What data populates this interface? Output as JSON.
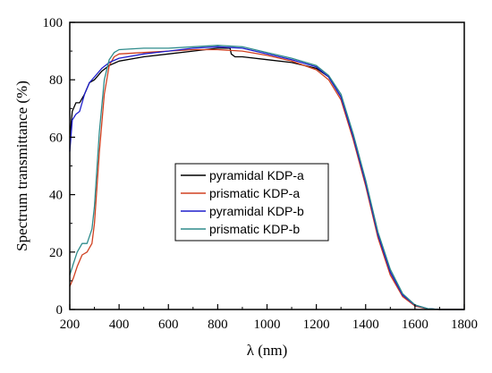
{
  "chart_data": {
    "type": "line",
    "xlabel": "λ (nm)",
    "ylabel": "Spectrum transmittance (%)",
    "xlim": [
      200,
      1800
    ],
    "ylim": [
      0,
      100
    ],
    "xticks": [
      "200",
      "400",
      "600",
      "800",
      "1000",
      "1200",
      "1400",
      "1600",
      "1800"
    ],
    "yticks": [
      "0",
      "20",
      "40",
      "60",
      "80",
      "100"
    ],
    "grid": false,
    "legend_position": "center-left",
    "series": [
      {
        "name": "pyramidal KDP-a",
        "color": "#000000",
        "points": [
          [
            200,
            60
          ],
          [
            210,
            69
          ],
          [
            225,
            72
          ],
          [
            240,
            72
          ],
          [
            260,
            75
          ],
          [
            280,
            79
          ],
          [
            300,
            80
          ],
          [
            330,
            83
          ],
          [
            360,
            85
          ],
          [
            400,
            86.5
          ],
          [
            500,
            88
          ],
          [
            600,
            89
          ],
          [
            700,
            90
          ],
          [
            800,
            91
          ],
          [
            850,
            91
          ],
          [
            855,
            89
          ],
          [
            870,
            88
          ],
          [
            900,
            88
          ],
          [
            1000,
            87
          ],
          [
            1100,
            86
          ],
          [
            1200,
            84
          ],
          [
            1250,
            81
          ],
          [
            1300,
            74
          ],
          [
            1350,
            60
          ],
          [
            1400,
            44
          ],
          [
            1450,
            26
          ],
          [
            1500,
            13
          ],
          [
            1550,
            5
          ],
          [
            1600,
            1.5
          ],
          [
            1650,
            0.3
          ],
          [
            1700,
            0
          ],
          [
            1800,
            0
          ]
        ]
      },
      {
        "name": "prismatic KDP-a",
        "color": "#d04020",
        "points": [
          [
            200,
            8
          ],
          [
            215,
            11
          ],
          [
            230,
            15
          ],
          [
            250,
            19
          ],
          [
            270,
            20
          ],
          [
            290,
            23
          ],
          [
            300,
            30
          ],
          [
            320,
            55
          ],
          [
            340,
            75
          ],
          [
            360,
            85
          ],
          [
            380,
            88
          ],
          [
            400,
            89
          ],
          [
            500,
            89.5
          ],
          [
            600,
            90
          ],
          [
            700,
            90.5
          ],
          [
            800,
            90.5
          ],
          [
            900,
            90
          ],
          [
            1000,
            88.5
          ],
          [
            1100,
            86.5
          ],
          [
            1200,
            83.5
          ],
          [
            1250,
            80
          ],
          [
            1300,
            73
          ],
          [
            1350,
            59
          ],
          [
            1400,
            43
          ],
          [
            1450,
            25
          ],
          [
            1500,
            12
          ],
          [
            1550,
            4.5
          ],
          [
            1600,
            1.2
          ],
          [
            1650,
            0.2
          ],
          [
            1700,
            0
          ],
          [
            1800,
            0
          ]
        ]
      },
      {
        "name": "pyramidal KDP-b",
        "color": "#1e1ecc",
        "points": [
          [
            200,
            55
          ],
          [
            210,
            66
          ],
          [
            225,
            68
          ],
          [
            240,
            69
          ],
          [
            260,
            75
          ],
          [
            280,
            79
          ],
          [
            300,
            81
          ],
          [
            330,
            84
          ],
          [
            360,
            86
          ],
          [
            400,
            87.5
          ],
          [
            500,
            89
          ],
          [
            600,
            90
          ],
          [
            700,
            91
          ],
          [
            800,
            91.5
          ],
          [
            900,
            91
          ],
          [
            1000,
            89
          ],
          [
            1100,
            87
          ],
          [
            1200,
            84.5
          ],
          [
            1250,
            81
          ],
          [
            1300,
            74
          ],
          [
            1350,
            60
          ],
          [
            1400,
            44
          ],
          [
            1450,
            26
          ],
          [
            1500,
            13
          ],
          [
            1550,
            5
          ],
          [
            1600,
            1.5
          ],
          [
            1650,
            0.3
          ],
          [
            1700,
            0
          ],
          [
            1800,
            0
          ]
        ]
      },
      {
        "name": "prismatic KDP-b",
        "color": "#2e8b8b",
        "points": [
          [
            200,
            12
          ],
          [
            215,
            16
          ],
          [
            230,
            20
          ],
          [
            250,
            23
          ],
          [
            270,
            23
          ],
          [
            290,
            28
          ],
          [
            300,
            36
          ],
          [
            320,
            62
          ],
          [
            340,
            80
          ],
          [
            360,
            87
          ],
          [
            380,
            89.5
          ],
          [
            400,
            90.5
          ],
          [
            500,
            91
          ],
          [
            600,
            91
          ],
          [
            700,
            91.5
          ],
          [
            800,
            92
          ],
          [
            900,
            91.5
          ],
          [
            1000,
            89.5
          ],
          [
            1100,
            87.5
          ],
          [
            1200,
            85
          ],
          [
            1250,
            81.5
          ],
          [
            1300,
            75
          ],
          [
            1350,
            61
          ],
          [
            1400,
            45
          ],
          [
            1450,
            27
          ],
          [
            1500,
            14
          ],
          [
            1550,
            5.5
          ],
          [
            1600,
            1.6
          ],
          [
            1650,
            0.3
          ],
          [
            1700,
            0
          ],
          [
            1800,
            0
          ]
        ]
      }
    ]
  }
}
